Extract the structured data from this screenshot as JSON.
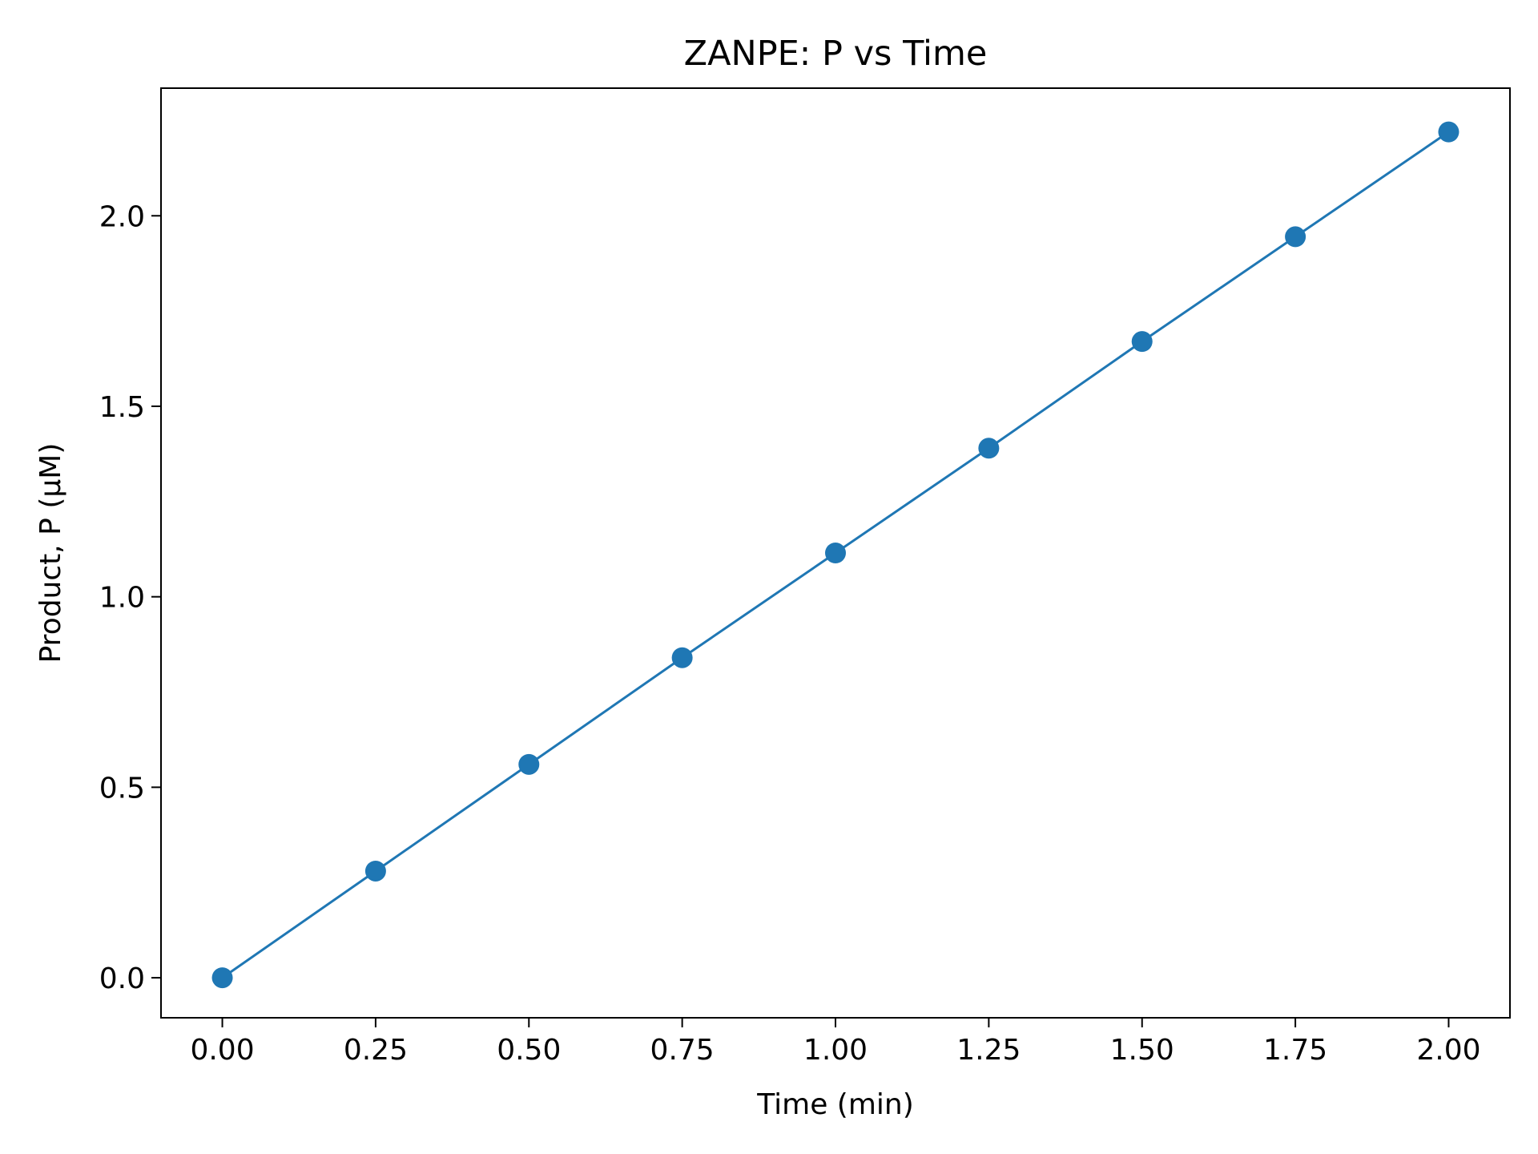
{
  "chart_data": {
    "type": "line",
    "title": "ZANPE: P vs Time",
    "xlabel": "Time (min)",
    "ylabel": "Product, P (μM)",
    "xlim": [
      -0.1,
      2.1
    ],
    "ylim": [
      -0.105,
      2.335
    ],
    "xticks": [
      0.0,
      0.25,
      0.5,
      0.75,
      1.0,
      1.25,
      1.5,
      1.75,
      2.0
    ],
    "xtick_labels": [
      "0.00",
      "0.25",
      "0.50",
      "0.75",
      "1.00",
      "1.25",
      "1.50",
      "1.75",
      "2.00"
    ],
    "yticks": [
      0.0,
      0.5,
      1.0,
      1.5,
      2.0
    ],
    "ytick_labels": [
      "0.0",
      "0.5",
      "1.0",
      "1.5",
      "2.0"
    ],
    "grid": false,
    "legend": false,
    "series": [
      {
        "color": "#1f77b4",
        "marker": "circle",
        "x": [
          0.0,
          0.25,
          0.5,
          0.75,
          1.0,
          1.25,
          1.5,
          1.75,
          2.0
        ],
        "y": [
          0.0,
          0.28,
          0.56,
          0.84,
          1.115,
          1.39,
          1.67,
          1.945,
          2.22
        ]
      }
    ]
  }
}
